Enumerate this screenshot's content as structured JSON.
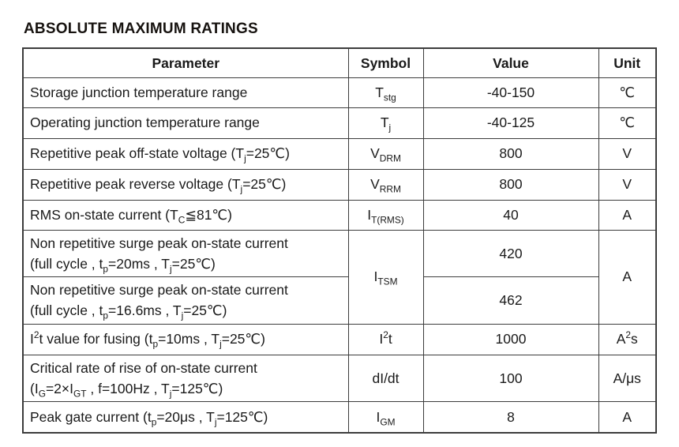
{
  "page": {
    "title": "ABSOLUTE MAXIMUM RATINGS"
  },
  "table": {
    "headers": [
      "Parameter",
      "Symbol",
      "Value",
      "Unit"
    ],
    "rows": [
      {
        "parameter": [
          {
            "t": "Storage junction temperature range"
          }
        ],
        "symbol": [
          {
            "t": "T"
          },
          {
            "s": "stg"
          }
        ],
        "value": "-40-150",
        "unit": [
          {
            "t": "℃"
          }
        ]
      },
      {
        "parameter": [
          {
            "t": "Operating junction temperature range"
          }
        ],
        "symbol": [
          {
            "t": "T"
          },
          {
            "s": "j"
          }
        ],
        "value": "-40-125",
        "unit": [
          {
            "t": "℃"
          }
        ]
      },
      {
        "parameter": [
          {
            "t": "Repetitive peak off-state voltage (T"
          },
          {
            "s": "j"
          },
          {
            "t": "=25℃)"
          }
        ],
        "symbol": [
          {
            "t": "V"
          },
          {
            "s": "DRM"
          }
        ],
        "value": "800",
        "unit": [
          {
            "t": "V"
          }
        ]
      },
      {
        "parameter": [
          {
            "t": "Repetitive peak reverse voltage (T"
          },
          {
            "s": "j"
          },
          {
            "t": "=25℃)"
          }
        ],
        "symbol": [
          {
            "t": "V"
          },
          {
            "s": "RRM"
          }
        ],
        "value": "800",
        "unit": [
          {
            "t": "V"
          }
        ]
      },
      {
        "parameter": [
          {
            "t": "RMS on-state current (T"
          },
          {
            "s": "C"
          },
          {
            "t": "≦81℃)"
          }
        ],
        "symbol": [
          {
            "t": "I"
          },
          {
            "s": "T(RMS)"
          }
        ],
        "value": "40",
        "unit": [
          {
            "t": "A"
          }
        ]
      },
      {
        "parameter": [
          {
            "t": "Non repetitive surge peak on-state current"
          },
          {
            "br": true
          },
          {
            "t": "(full cycle , t"
          },
          {
            "s": "p"
          },
          {
            "t": "=20ms , T"
          },
          {
            "s": "j"
          },
          {
            "t": "=25℃)"
          }
        ],
        "symbol": [
          {
            "t": "I"
          },
          {
            "s": "TSM"
          }
        ],
        "value": "420",
        "unit": [
          {
            "t": "A"
          }
        ]
      },
      {
        "parameter": [
          {
            "t": "Non repetitive surge peak on-state current"
          },
          {
            "br": true
          },
          {
            "t": "(full cycle , t"
          },
          {
            "s": "p"
          },
          {
            "t": "=16.6ms , T"
          },
          {
            "s": "j"
          },
          {
            "t": "=25℃)"
          }
        ],
        "value": "462"
      },
      {
        "parameter": [
          {
            "t": "I"
          },
          {
            "p": "2"
          },
          {
            "t": "t value for fusing (t"
          },
          {
            "s": "p"
          },
          {
            "t": "=10ms , T"
          },
          {
            "s": "j"
          },
          {
            "t": "=25℃)"
          }
        ],
        "symbol": [
          {
            "t": "I"
          },
          {
            "p": "2"
          },
          {
            "t": "t"
          }
        ],
        "value": "1000",
        "unit": [
          {
            "t": "A"
          },
          {
            "p": "2"
          },
          {
            "t": "s"
          }
        ]
      },
      {
        "parameter": [
          {
            "t": "Critical rate of rise of on-state current"
          },
          {
            "br": true
          },
          {
            "t": "(I"
          },
          {
            "s": "G"
          },
          {
            "t": "=2×I"
          },
          {
            "s": "GT"
          },
          {
            "t": " , f=100Hz , T"
          },
          {
            "s": "j"
          },
          {
            "t": "=125℃)"
          }
        ],
        "symbol": [
          {
            "t": "dI/dt"
          }
        ],
        "value": "100",
        "unit": [
          {
            "t": "A/μs"
          }
        ]
      },
      {
        "parameter": [
          {
            "t": "Peak gate current (t"
          },
          {
            "s": "p"
          },
          {
            "t": "=20μs , T"
          },
          {
            "s": "j"
          },
          {
            "t": "=125℃)"
          }
        ],
        "symbol": [
          {
            "t": "I"
          },
          {
            "s": "GM"
          }
        ],
        "value": "8",
        "unit": [
          {
            "t": "A"
          }
        ]
      }
    ]
  }
}
